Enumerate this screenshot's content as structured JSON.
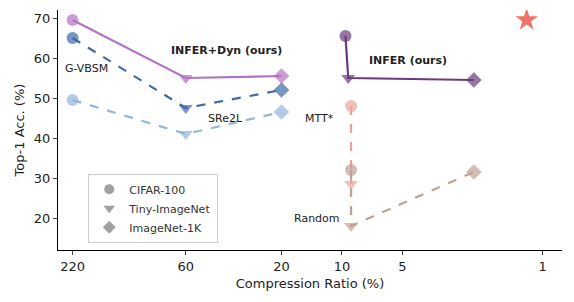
{
  "chart_data": {
    "type": "line",
    "x_label": "Compression Ratio (%)",
    "y_label": "Top-1 Acc. (%)",
    "log": "x",
    "xlim": [
      260,
      0.8
    ],
    "xticks": [
      220,
      60,
      20,
      10,
      5,
      1
    ],
    "ylim": [
      12,
      72
    ],
    "yticks": [
      20,
      30,
      40,
      50,
      60,
      70
    ],
    "grid": false,
    "legend": "lower left",
    "marker_legend": [
      {
        "name": "CIFAR-100",
        "marker": "circle",
        "color": "#a0a0a0"
      },
      {
        "name": "Tiny-ImageNet",
        "marker": "triangle-down",
        "color": "#a0a0a0"
      },
      {
        "name": "ImageNet-1K",
        "marker": "diamond",
        "color": "#a0a0a0"
      }
    ],
    "series": [
      {
        "name": "INFER+Dyn (ours)",
        "color": "#b373c4",
        "line_style": "solid",
        "datasets": [
          "CIFAR-100",
          "Tiny-ImageNet",
          "ImageNet-1K"
        ],
        "x": [
          220,
          60,
          20
        ],
        "values": [
          69.5,
          55,
          55.5
        ]
      },
      {
        "name": "G-VBSM",
        "color": "#3d6aa8",
        "line_style": "dashed",
        "datasets": [
          "CIFAR-100",
          "Tiny-ImageNet",
          "ImageNet-1K"
        ],
        "x": [
          220,
          60,
          20
        ],
        "values": [
          65,
          47.5,
          52
        ]
      },
      {
        "name": "SRe2L",
        "color": "#93b5dc",
        "line_style": "dashed",
        "datasets": [
          "CIFAR-100",
          "Tiny-ImageNet",
          "ImageNet-1K"
        ],
        "x": [
          220,
          60,
          20
        ],
        "values": [
          49.5,
          41,
          46.5
        ]
      },
      {
        "name": "INFER (ours)",
        "color": "#6a3a7c",
        "line_style": "solid",
        "datasets": [
          "CIFAR-100",
          "Tiny-ImageNet",
          "ImageNet-1K"
        ],
        "x": [
          9.6,
          9.3,
          2.2
        ],
        "values": [
          65.5,
          55,
          54.5
        ]
      },
      {
        "name": "MTT*",
        "color": "#e9a49a",
        "line_style": "dashed",
        "datasets": [
          "CIFAR-100",
          "Tiny-ImageNet"
        ],
        "x": [
          9,
          9
        ],
        "values": [
          48,
          28.5
        ]
      },
      {
        "name": "Random",
        "color": "#bfa396",
        "line_style": "dashed",
        "datasets": [
          "CIFAR-100",
          "Tiny-ImageNet",
          "ImageNet-1K"
        ],
        "x": [
          9,
          9,
          2.2
        ],
        "values": [
          32,
          18,
          31.5
        ]
      },
      {
        "color": "#e8372c",
        "marker": "star",
        "x": [
          1.2
        ],
        "values": [
          69.5
        ]
      }
    ]
  }
}
